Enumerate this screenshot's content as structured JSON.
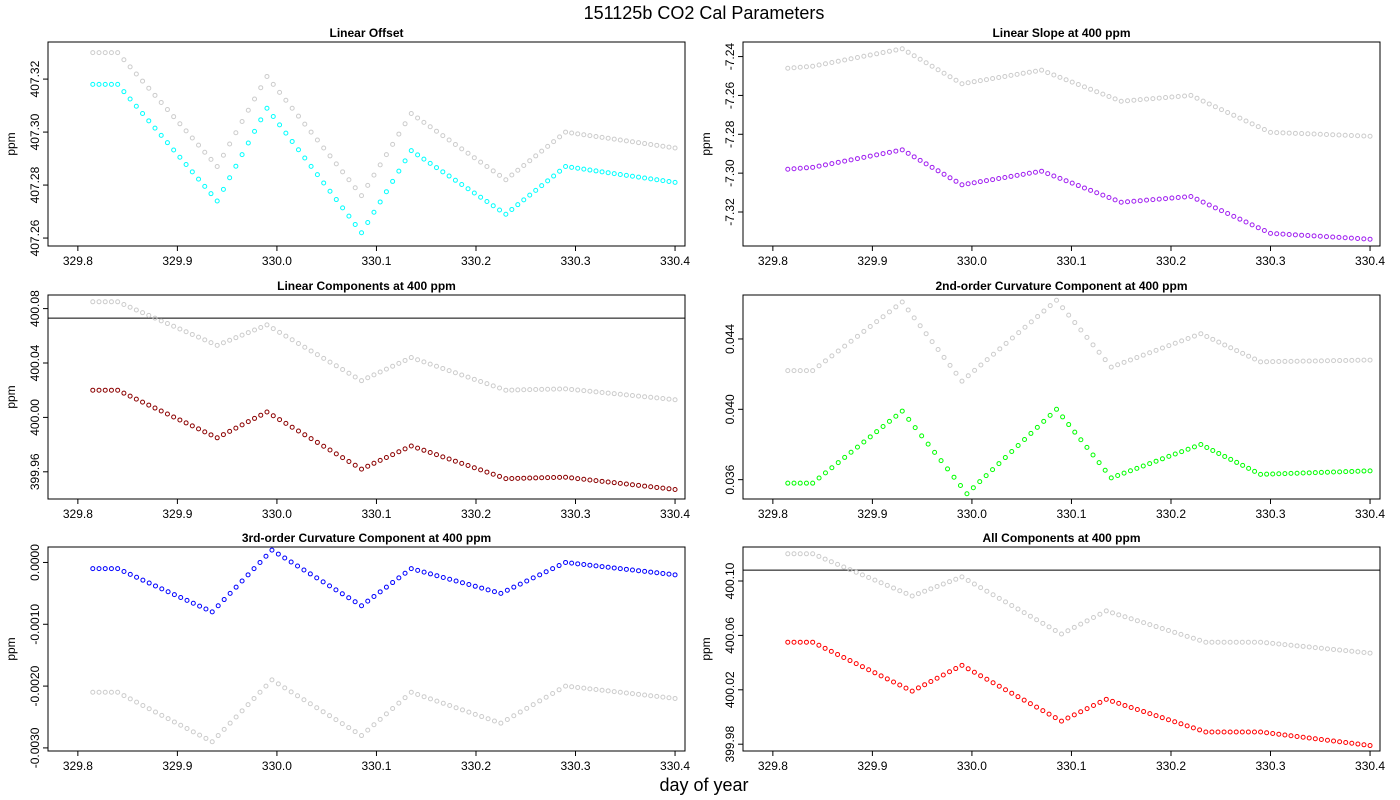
{
  "figure": {
    "title": "151125b   CO2 Cal Parameters",
    "xlabel": "day of year"
  },
  "chart_data": [
    {
      "type": "scatter",
      "title": "Linear Offset",
      "ylabel": "ppm",
      "xlim": [
        329.77,
        330.41
      ],
      "ylim": [
        407.257,
        407.334
      ],
      "xticks": [
        329.8,
        329.9,
        330.0,
        330.1,
        330.2,
        330.3,
        330.4
      ],
      "xtick_labels": [
        "329.8",
        "329.9",
        "330.0",
        "330.1",
        "330.2",
        "330.3",
        "330.4"
      ],
      "yticks": [
        407.26,
        407.28,
        407.3,
        407.32
      ],
      "ytick_labels": [
        "407.26",
        "407.28",
        "407.30",
        "407.32"
      ],
      "hline": null,
      "series": [
        {
          "color": "#cccccc",
          "points": [
            [
              329.815,
              407.33
            ],
            [
              329.84,
              407.33
            ],
            [
              329.94,
              407.287
            ],
            [
              329.99,
              407.321
            ],
            [
              330.085,
              407.276
            ],
            [
              330.135,
              407.307
            ],
            [
              330.23,
              407.282
            ],
            [
              330.29,
              407.3
            ],
            [
              330.4,
              407.294
            ]
          ]
        },
        {
          "color": "#00ffff",
          "points": [
            [
              329.815,
              407.318
            ],
            [
              329.84,
              407.318
            ],
            [
              329.94,
              407.274
            ],
            [
              329.99,
              407.309
            ],
            [
              330.085,
              407.262
            ],
            [
              330.135,
              407.293
            ],
            [
              330.23,
              407.269
            ],
            [
              330.29,
              407.287
            ],
            [
              330.4,
              407.281
            ]
          ]
        }
      ]
    },
    {
      "type": "scatter",
      "title": "Linear Slope at 400 ppm",
      "ylabel": "ppm",
      "xlim": [
        329.77,
        330.41
      ],
      "ylim": [
        -7.3375,
        -7.2325
      ],
      "xticks": [
        329.8,
        329.9,
        330.0,
        330.1,
        330.2,
        330.3,
        330.4
      ],
      "xtick_labels": [
        "329.8",
        "329.9",
        "330.0",
        "330.1",
        "330.2",
        "330.3",
        "330.4"
      ],
      "yticks": [
        -7.32,
        -7.3,
        -7.28,
        -7.26,
        -7.24
      ],
      "ytick_labels": [
        "-7.32",
        "-7.30",
        "-7.28",
        "-7.26",
        "-7.24"
      ],
      "hline": null,
      "series": [
        {
          "color": "#cccccc",
          "points": [
            [
              329.815,
              -7.246
            ],
            [
              329.84,
              -7.245
            ],
            [
              329.93,
              -7.236
            ],
            [
              329.99,
              -7.254
            ],
            [
              330.07,
              -7.247
            ],
            [
              330.15,
              -7.263
            ],
            [
              330.22,
              -7.26
            ],
            [
              330.3,
              -7.279
            ],
            [
              330.4,
              -7.281
            ]
          ]
        },
        {
          "color": "#a020f0",
          "points": [
            [
              329.815,
              -7.298
            ],
            [
              329.84,
              -7.297
            ],
            [
              329.93,
              -7.288
            ],
            [
              329.99,
              -7.306
            ],
            [
              330.07,
              -7.299
            ],
            [
              330.15,
              -7.315
            ],
            [
              330.22,
              -7.312
            ],
            [
              330.3,
              -7.331
            ],
            [
              330.4,
              -7.334
            ]
          ]
        }
      ]
    },
    {
      "type": "scatter",
      "title": "Linear Components at 400 ppm",
      "ylabel": "ppm",
      "xlim": [
        329.77,
        330.41
      ],
      "ylim": [
        399.94,
        400.09
      ],
      "xticks": [
        329.8,
        329.9,
        330.0,
        330.1,
        330.2,
        330.3,
        330.4
      ],
      "xtick_labels": [
        "329.8",
        "329.9",
        "330.0",
        "330.1",
        "330.2",
        "330.3",
        "330.4"
      ],
      "yticks": [
        399.96,
        400.0,
        400.04,
        400.08
      ],
      "ytick_labels": [
        "399.96",
        "400.00",
        "400.04",
        "400.08"
      ],
      "hline": 400.073,
      "series": [
        {
          "color": "#cccccc",
          "points": [
            [
              329.815,
              400.085
            ],
            [
              329.84,
              400.085
            ],
            [
              329.94,
              400.053
            ],
            [
              329.99,
              400.068
            ],
            [
              330.085,
              400.027
            ],
            [
              330.135,
              400.044
            ],
            [
              330.23,
              400.02
            ],
            [
              330.29,
              400.021
            ],
            [
              330.4,
              400.013
            ]
          ]
        },
        {
          "color": "#8b0000",
          "points": [
            [
              329.815,
              400.02
            ],
            [
              329.84,
              400.02
            ],
            [
              329.94,
              399.985
            ],
            [
              329.99,
              400.004
            ],
            [
              330.085,
              399.962
            ],
            [
              330.135,
              399.979
            ],
            [
              330.23,
              399.955
            ],
            [
              330.29,
              399.956
            ],
            [
              330.4,
              399.947
            ]
          ]
        }
      ]
    },
    {
      "type": "scatter",
      "title": "2nd-order Curvature Component at 400 ppm",
      "ylabel": "",
      "xlim": [
        329.77,
        330.41
      ],
      "ylim": [
        0.0349,
        0.0465
      ],
      "xticks": [
        329.8,
        329.9,
        330.0,
        330.1,
        330.2,
        330.3,
        330.4
      ],
      "xtick_labels": [
        "329.8",
        "329.9",
        "330.0",
        "330.1",
        "330.2",
        "330.3",
        "330.4"
      ],
      "yticks": [
        0.036,
        0.04,
        0.044
      ],
      "ytick_labels": [
        "0.036",
        "0.040",
        "0.044"
      ],
      "hline": null,
      "series": [
        {
          "color": "#cccccc",
          "points": [
            [
              329.815,
              0.0422
            ],
            [
              329.84,
              0.0422
            ],
            [
              329.93,
              0.0461
            ],
            [
              329.99,
              0.0416
            ],
            [
              330.085,
              0.0462
            ],
            [
              330.14,
              0.0424
            ],
            [
              330.23,
              0.0443
            ],
            [
              330.29,
              0.0427
            ],
            [
              330.4,
              0.0428
            ]
          ]
        },
        {
          "color": "#00ff00",
          "points": [
            [
              329.815,
              0.0358
            ],
            [
              329.84,
              0.0358
            ],
            [
              329.93,
              0.0399
            ],
            [
              329.995,
              0.0352
            ],
            [
              330.085,
              0.04
            ],
            [
              330.14,
              0.0361
            ],
            [
              330.23,
              0.038
            ],
            [
              330.29,
              0.0363
            ],
            [
              330.4,
              0.0365
            ]
          ]
        }
      ]
    },
    {
      "type": "scatter",
      "title": "3rd-order Curvature Component at 400 ppm",
      "ylabel": "ppm",
      "xlim": [
        329.77,
        330.41
      ],
      "ylim": [
        -0.00305,
        0.00025
      ],
      "xticks": [
        329.8,
        329.9,
        330.0,
        330.1,
        330.2,
        330.3,
        330.4
      ],
      "xtick_labels": [
        "329.8",
        "329.9",
        "330.0",
        "330.1",
        "330.2",
        "330.3",
        "330.4"
      ],
      "yticks": [
        -0.003,
        -0.002,
        -0.001,
        0.0
      ],
      "ytick_labels": [
        "-0.0030",
        "-0.0020",
        "-0.0010",
        "0.0000"
      ],
      "hline": null,
      "series": [
        {
          "color": "#cccccc",
          "points": [
            [
              329.815,
              -0.0021
            ],
            [
              329.84,
              -0.0021
            ],
            [
              329.935,
              -0.0029
            ],
            [
              329.995,
              -0.0019
            ],
            [
              330.085,
              -0.0028
            ],
            [
              330.135,
              -0.0021
            ],
            [
              330.225,
              -0.0026
            ],
            [
              330.29,
              -0.002
            ],
            [
              330.4,
              -0.0022
            ]
          ]
        },
        {
          "color": "#0000ff",
          "points": [
            [
              329.815,
              -0.0001
            ],
            [
              329.84,
              -0.0001
            ],
            [
              329.935,
              -0.0008
            ],
            [
              329.995,
              0.0002
            ],
            [
              330.085,
              -0.0007
            ],
            [
              330.135,
              -0.0001
            ],
            [
              330.225,
              -0.0005
            ],
            [
              330.29,
              0.0
            ],
            [
              330.4,
              -0.0002
            ]
          ]
        }
      ]
    },
    {
      "type": "scatter",
      "title": "All Components at 400 ppm",
      "ylabel": "ppm",
      "xlim": [
        329.77,
        330.41
      ],
      "ylim": [
        399.975,
        400.125
      ],
      "xticks": [
        329.8,
        329.9,
        330.0,
        330.1,
        330.2,
        330.3,
        330.4
      ],
      "xtick_labels": [
        "329.8",
        "329.9",
        "330.0",
        "330.1",
        "330.2",
        "330.3",
        "330.4"
      ],
      "yticks": [
        399.98,
        400.02,
        400.06,
        400.1
      ],
      "ytick_labels": [
        "399.98",
        "400.02",
        "400.06",
        "400.10"
      ],
      "hline": 400.108,
      "series": [
        {
          "color": "#cccccc",
          "points": [
            [
              329.815,
              400.12
            ],
            [
              329.84,
              400.12
            ],
            [
              329.94,
              400.089
            ],
            [
              329.99,
              400.103
            ],
            [
              330.09,
              400.061
            ],
            [
              330.135,
              400.078
            ],
            [
              330.235,
              400.055
            ],
            [
              330.29,
              400.055
            ],
            [
              330.4,
              400.047
            ]
          ]
        },
        {
          "color": "#ff0000",
          "points": [
            [
              329.815,
              400.055
            ],
            [
              329.84,
              400.055
            ],
            [
              329.94,
              400.019
            ],
            [
              329.99,
              400.038
            ],
            [
              330.09,
              399.997
            ],
            [
              330.135,
              400.013
            ],
            [
              330.235,
              399.989
            ],
            [
              330.29,
              399.989
            ],
            [
              330.4,
              399.979
            ]
          ]
        }
      ]
    }
  ]
}
